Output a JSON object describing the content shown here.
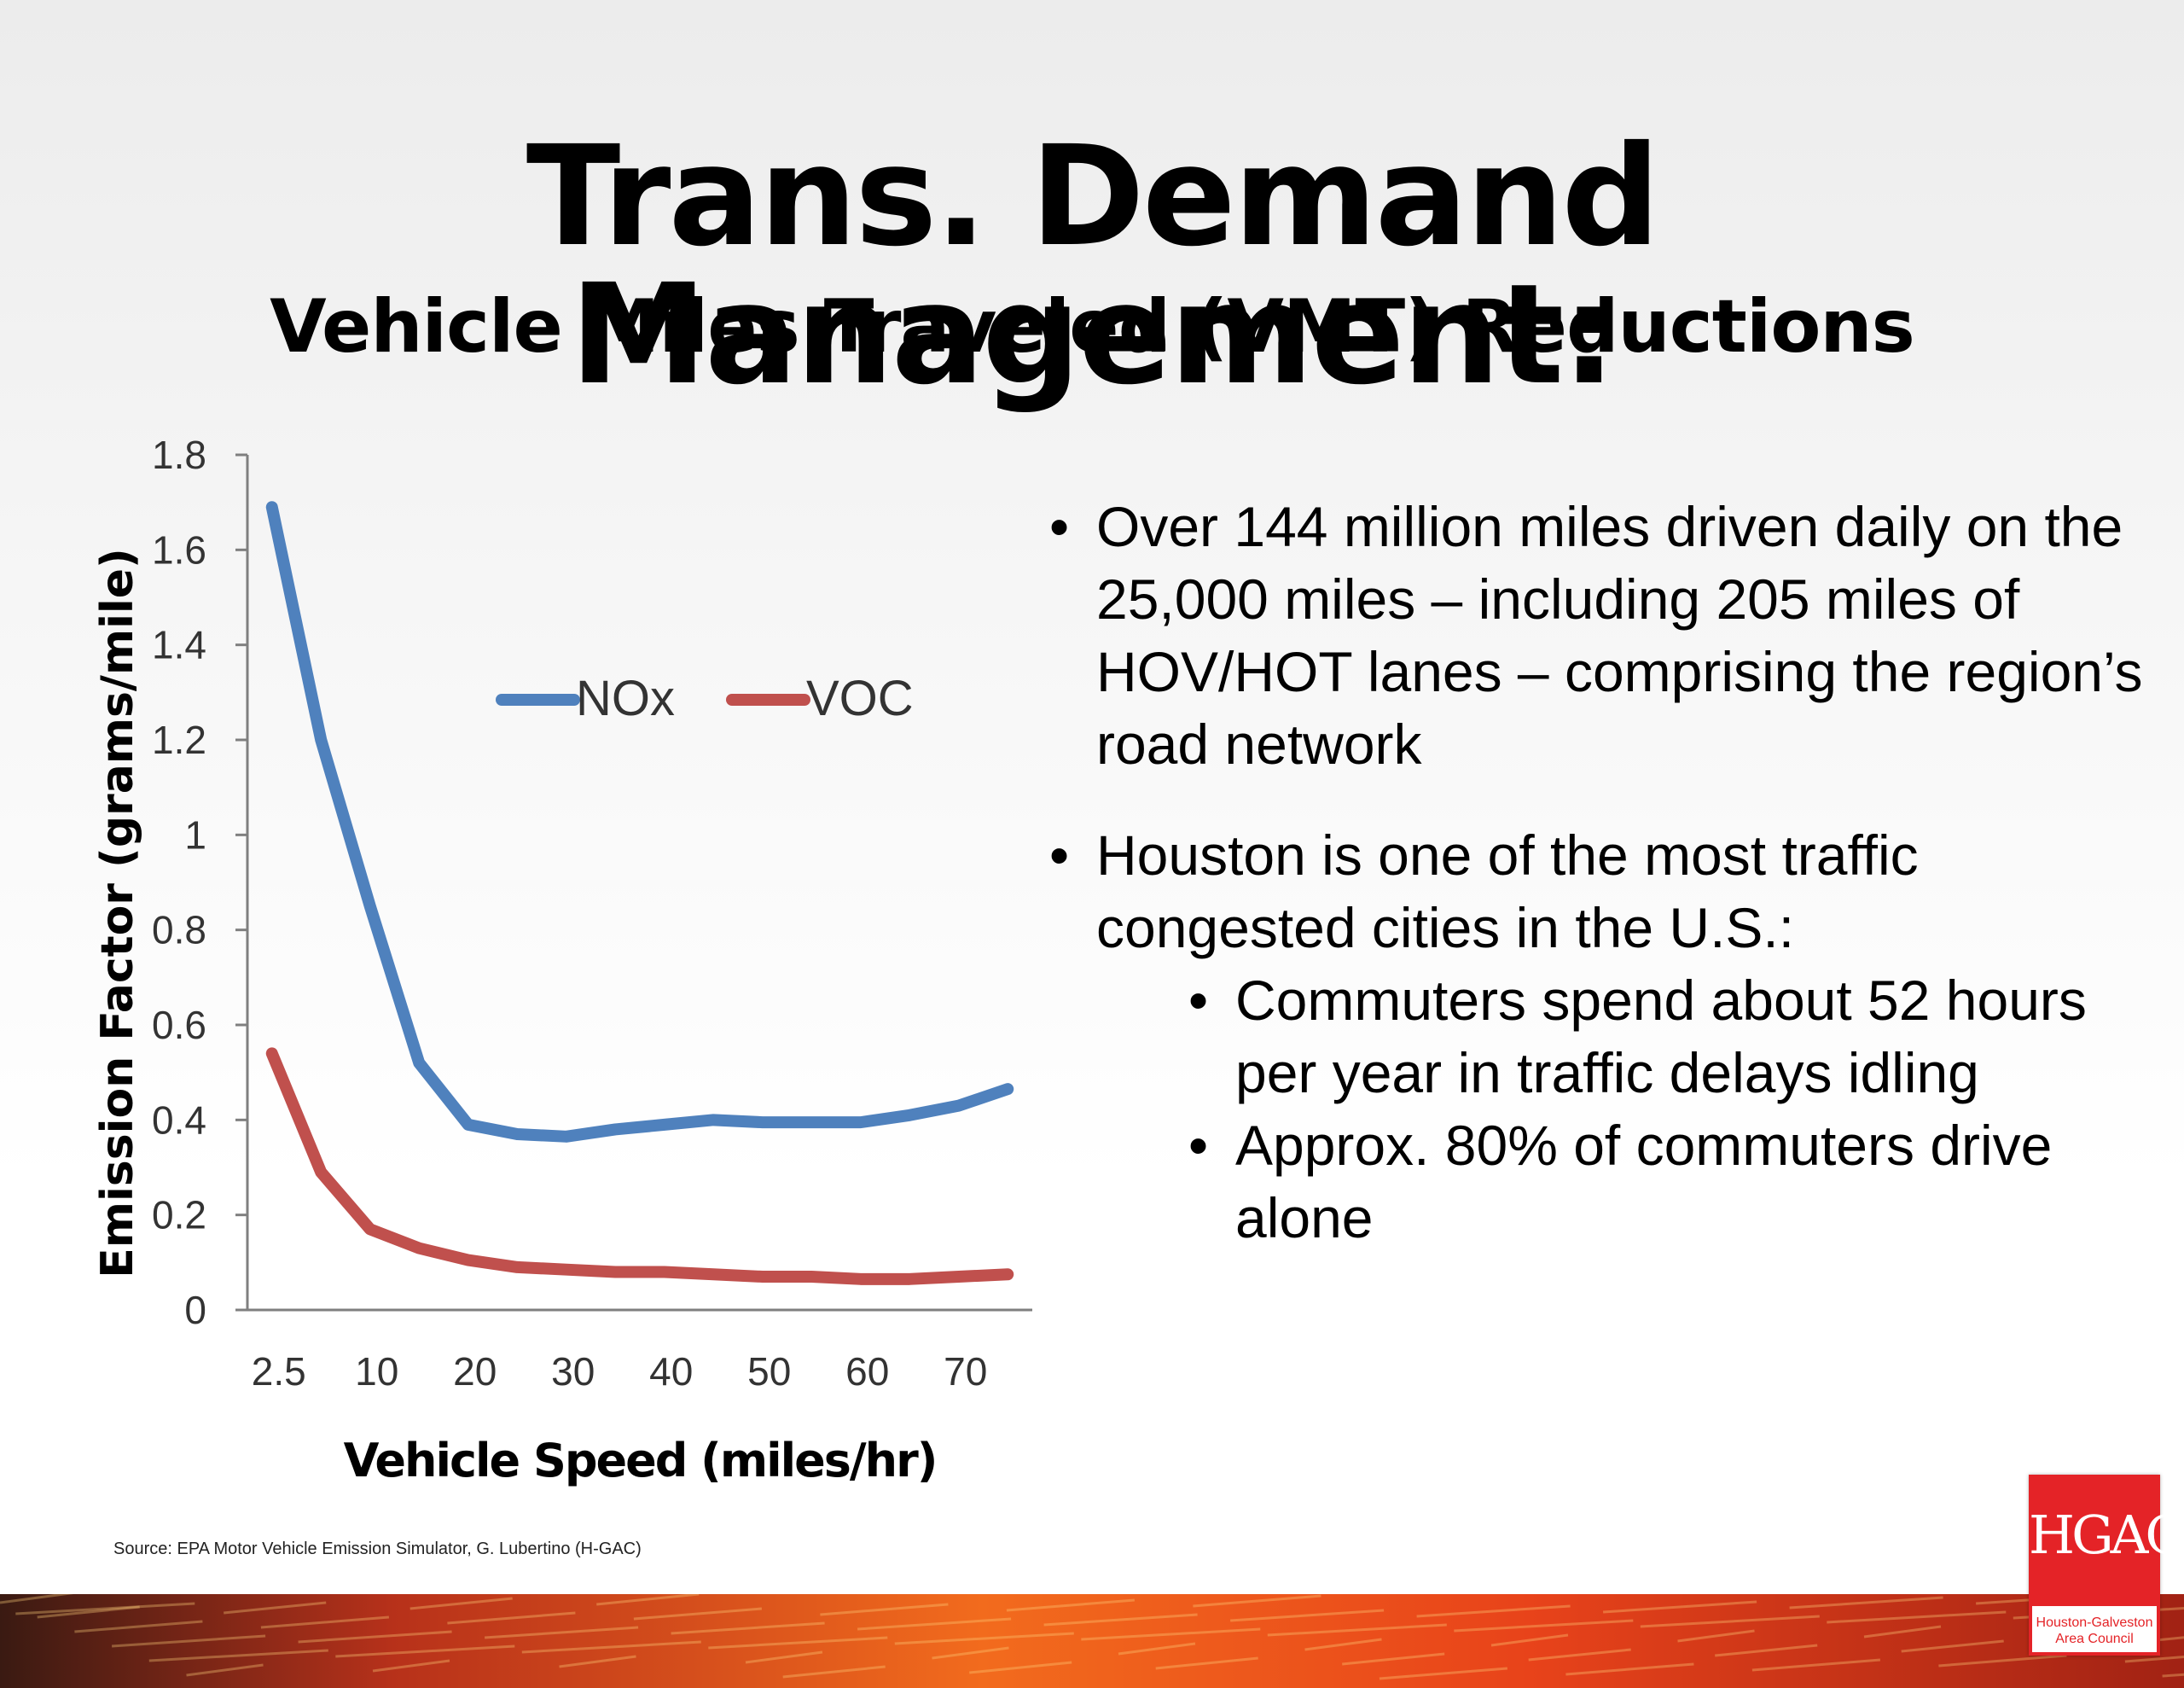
{
  "slide": {
    "title": "Trans. Demand Management:",
    "subtitle": "Vehicle Miles Traveled (VMT) Reductions",
    "source": "Source: EPA Motor Vehicle Emission Simulator, G. Lubertino (H-GAC)",
    "bullets": [
      {
        "text": "Over 144 million miles driven daily on the 25,000 miles – including 205 miles of HOV/HOT lanes – comprising the region’s road network"
      },
      {
        "text": "Houston is one of the most traffic congested cities in the U.S.:",
        "sub": [
          "Commuters spend about 52 hours per year in traffic delays idling",
          "Approx. 80% of commuters drive alone"
        ]
      }
    ],
    "logo": {
      "mark": "HGAC",
      "caption_line1": "Houston-Galveston",
      "caption_line2": "Area Council",
      "color": "#e42327"
    }
  },
  "chart_data": {
    "type": "line",
    "xlabel": "Vehicle Speed (miles/hr)",
    "ylabel": "Emission Factor (grams/mile)",
    "ylim": [
      0,
      1.8
    ],
    "yticks": [
      "0",
      "0.2",
      "0.4",
      "0.6",
      "0.8",
      "1",
      "1.2",
      "1.4",
      "1.6",
      "1.8"
    ],
    "x": [
      2.5,
      5,
      10,
      15,
      20,
      25,
      30,
      35,
      40,
      45,
      50,
      55,
      60,
      65,
      70,
      75
    ],
    "xticks": [
      "2.5",
      "10",
      "20",
      "30",
      "40",
      "50",
      "60",
      "70"
    ],
    "legend_position": "upper-center",
    "grid": false,
    "series": [
      {
        "name": "NOx",
        "color": "#4f81bd",
        "values": [
          1.69,
          1.2,
          0.85,
          0.52,
          0.39,
          0.37,
          0.365,
          0.38,
          0.39,
          0.4,
          0.395,
          0.395,
          0.395,
          0.41,
          0.43,
          0.465
        ]
      },
      {
        "name": "VOC",
        "color": "#c0504d",
        "values": [
          0.54,
          0.29,
          0.17,
          0.13,
          0.105,
          0.09,
          0.085,
          0.08,
          0.08,
          0.075,
          0.07,
          0.07,
          0.065,
          0.065,
          0.07,
          0.075
        ]
      }
    ]
  }
}
